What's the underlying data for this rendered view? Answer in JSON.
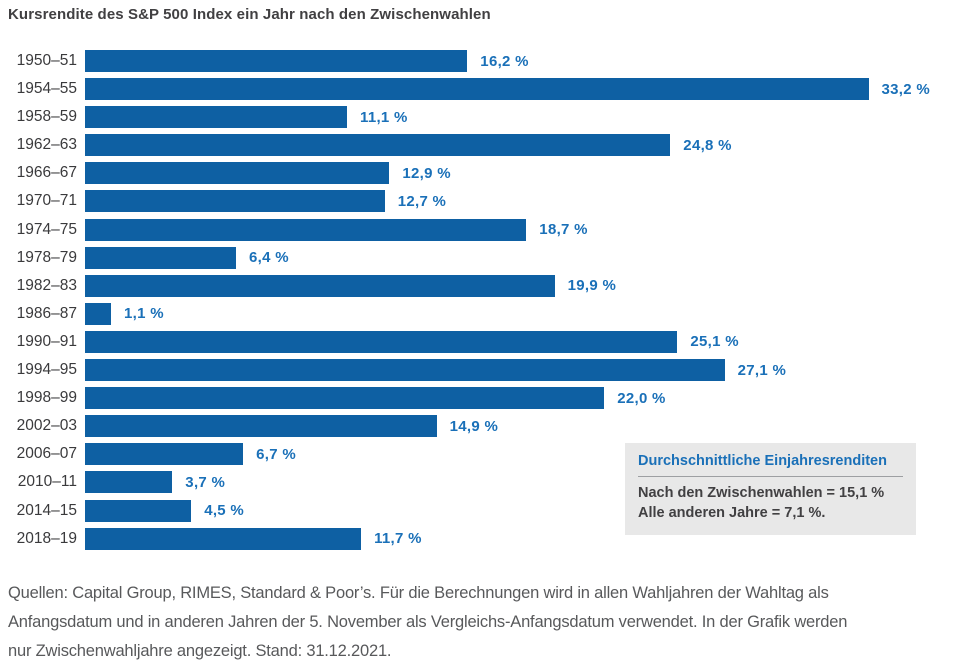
{
  "title": "Kursrendite des S&P 500 Index ein Jahr nach den Zwischenwahlen",
  "colors": {
    "bar": "#0e60a3",
    "value_label": "#1a70b8",
    "title_text": "#414042",
    "axis_label": "#3a3a3c",
    "box_background": "#e8e8e8",
    "box_heading": "#1a70b8",
    "box_text": "#414042",
    "footer_text": "#58595b"
  },
  "chart_data": {
    "type": "bar",
    "orientation": "horizontal",
    "title": "Kursrendite des S&P 500 Index ein Jahr nach den Zwischenwahlen",
    "categories": [
      "1950–51",
      "1954–55",
      "1958–59",
      "1962–63",
      "1966–67",
      "1970–71",
      "1974–75",
      "1978–79",
      "1982–83",
      "1986–87",
      "1990–91",
      "1994–95",
      "1998–99",
      "2002–03",
      "2006–07",
      "2010–11",
      "2014–15",
      "2018–19"
    ],
    "values": [
      16.2,
      33.2,
      11.1,
      24.8,
      12.9,
      12.7,
      18.7,
      6.4,
      19.9,
      1.1,
      25.1,
      27.1,
      22.0,
      14.9,
      6.7,
      3.7,
      4.5,
      11.7
    ],
    "value_labels": [
      "16,2 %",
      "33,2 %",
      "11,1 %",
      "24,8 %",
      "12,9 %",
      "12,7 %",
      "18,7 %",
      "6,4 %",
      "19,9 %",
      "1,1 %",
      "25,1 %",
      "27,1 %",
      "22,0 %",
      "14,9 %",
      "6,7 %",
      "3,7 %",
      "4,5 %",
      "11,7 %"
    ],
    "xlabel": "",
    "ylabel": "",
    "xlim": [
      0,
      36
    ],
    "grid": false,
    "legend": false,
    "bar_color": "#0e60a3",
    "value_label_color": "#1a70b8"
  },
  "annotation_box": {
    "heading": "Durchschnittliche Einjahresrenditen",
    "line1": "Nach den Zwischenwahlen = 15,1 %",
    "line2": "Alle anderen Jahre = 7,1 %."
  },
  "footer": {
    "lines": {
      "0": "Quellen: Capital Group, RIMES, Standard & Poor’s. Für die Berechnungen wird in allen Wahljahren der Wahltag als",
      "1": "Anfangsdatum und in anderen Jahren der 5. November als Vergleichs-Anfangsdatum verwendet. In der Grafik werden",
      "2": "nur Zwischenwahljahre angezeigt. Stand: 31.12.2021."
    }
  }
}
